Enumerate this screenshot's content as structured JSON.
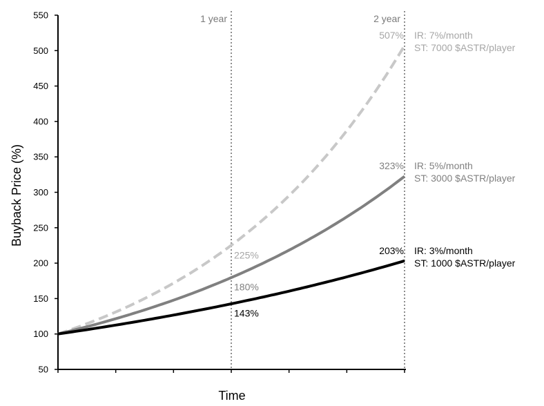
{
  "chart_data": {
    "type": "line",
    "title": "",
    "xlabel": "Time",
    "ylabel": "Buyback Price (%)",
    "ylim": [
      50,
      550
    ],
    "ytick_values": [
      50,
      100,
      150,
      200,
      250,
      300,
      350,
      400,
      450,
      500,
      550
    ],
    "ytick_labels": [
      "50",
      "100",
      "150",
      "200",
      "250",
      "300",
      "350",
      "400",
      "450",
      "500",
      "550"
    ],
    "xlim_months": [
      0,
      24
    ],
    "x_minor_ticks_months": [
      0,
      4,
      8,
      12,
      16,
      20,
      24
    ],
    "grid": false,
    "markers": [
      {
        "month": 12,
        "label": "1 year"
      },
      {
        "month": 24,
        "label": "2 year"
      }
    ],
    "series": [
      {
        "monthly_rate": 0.07,
        "start": 100,
        "style": "dashed",
        "color": "#c8c8c8",
        "text_color": "#a6a6a6",
        "annotation_line1": "IR: 7%/month",
        "annotation_line2": "ST: 7000 $ASTR/player",
        "point_labels": [
          {
            "month": 12,
            "value": 225,
            "text": "225%"
          },
          {
            "month": 24,
            "value": 507,
            "text": "507%"
          }
        ]
      },
      {
        "monthly_rate": 0.05,
        "start": 100,
        "style": "solid",
        "color": "#808080",
        "text_color": "#808080",
        "annotation_line1": "IR: 5%/month",
        "annotation_line2": "ST: 3000 $ASTR/player",
        "point_labels": [
          {
            "month": 12,
            "value": 180,
            "text": "180%"
          },
          {
            "month": 24,
            "value": 323,
            "text": "323%"
          }
        ]
      },
      {
        "monthly_rate": 0.03,
        "start": 100,
        "style": "solid",
        "color": "#000000",
        "text_color": "#000000",
        "annotation_line1": "IR: 3%/month",
        "annotation_line2": "ST: 1000 $ASTR/player",
        "point_labels": [
          {
            "month": 12,
            "value": 143,
            "text": "143%"
          },
          {
            "month": 24,
            "value": 203,
            "text": "203%"
          }
        ]
      }
    ]
  }
}
